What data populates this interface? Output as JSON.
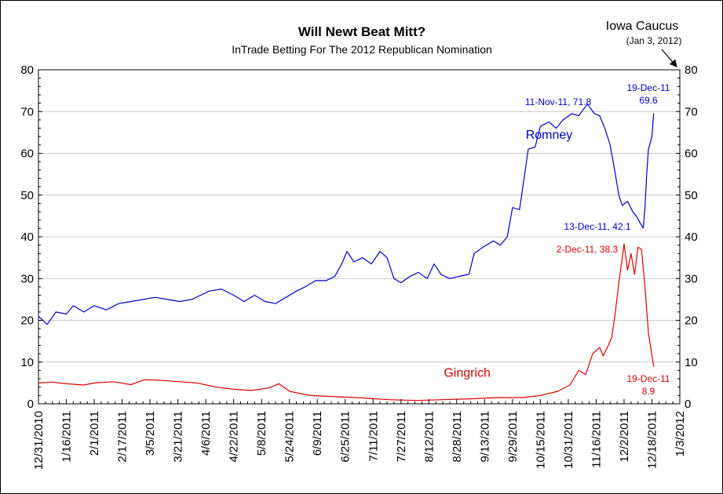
{
  "colors": {
    "romney": "#0000cc",
    "gingrich": "#dd0000",
    "grid": "#c8c8c8"
  },
  "chart_data": {
    "type": "line",
    "title": "Will Newt  Beat Mitt?",
    "subtitle": "InTrade Betting For The 2012 Republican Nomination",
    "ylim": [
      0,
      80
    ],
    "y_ticks": [
      0,
      10,
      20,
      30,
      40,
      50,
      60,
      70,
      80
    ],
    "x_range": [
      "2010-12-31",
      "2012-01-03"
    ],
    "x_tick_labels": [
      "12/31/2010",
      "1/16/2011",
      "2/1/2011",
      "2/17/2011",
      "3/5/2011",
      "3/21/2011",
      "4/6/2011",
      "4/22/2011",
      "5/8/2011",
      "5/24/2011",
      "6/9/2011",
      "6/25/2011",
      "7/11/2011",
      "7/27/2011",
      "8/12/2011",
      "8/28/2011",
      "9/13/2011",
      "9/29/2011",
      "10/15/2011",
      "10/31/2011",
      "11/16/2011",
      "12/2/2011",
      "12/18/2011",
      "1/3/2012"
    ],
    "grid": "horizontal",
    "series": [
      {
        "name": "Romney",
        "label_date": "2011-10-20",
        "label_value": 63.5,
        "points": [
          [
            "2010-12-31",
            21.0
          ],
          [
            "2011-01-05",
            19.0
          ],
          [
            "2011-01-10",
            22.0
          ],
          [
            "2011-01-16",
            21.5
          ],
          [
            "2011-01-20",
            23.5
          ],
          [
            "2011-01-26",
            22.0
          ],
          [
            "2011-02-01",
            23.5
          ],
          [
            "2011-02-08",
            22.5
          ],
          [
            "2011-02-15",
            24.0
          ],
          [
            "2011-02-22",
            24.5
          ],
          [
            "2011-03-01",
            25.0
          ],
          [
            "2011-03-08",
            25.5
          ],
          [
            "2011-03-15",
            25.0
          ],
          [
            "2011-03-22",
            24.5
          ],
          [
            "2011-03-29",
            25.0
          ],
          [
            "2011-04-03",
            26.0
          ],
          [
            "2011-04-08",
            27.0
          ],
          [
            "2011-04-15",
            27.5
          ],
          [
            "2011-04-22",
            26.0
          ],
          [
            "2011-04-28",
            24.5
          ],
          [
            "2011-05-04",
            26.0
          ],
          [
            "2011-05-10",
            24.5
          ],
          [
            "2011-05-16",
            24.0
          ],
          [
            "2011-05-22",
            25.5
          ],
          [
            "2011-05-28",
            27.0
          ],
          [
            "2011-06-02",
            28.0
          ],
          [
            "2011-06-08",
            29.5
          ],
          [
            "2011-06-14",
            29.5
          ],
          [
            "2011-06-19",
            30.5
          ],
          [
            "2011-06-23",
            33.5
          ],
          [
            "2011-06-26",
            36.5
          ],
          [
            "2011-06-30",
            34.0
          ],
          [
            "2011-07-05",
            35.0
          ],
          [
            "2011-07-10",
            33.5
          ],
          [
            "2011-07-15",
            36.5
          ],
          [
            "2011-07-19",
            35.0
          ],
          [
            "2011-07-23",
            30.0
          ],
          [
            "2011-07-27",
            29.0
          ],
          [
            "2011-08-01",
            30.5
          ],
          [
            "2011-08-06",
            31.5
          ],
          [
            "2011-08-11",
            30.0
          ],
          [
            "2011-08-15",
            33.5
          ],
          [
            "2011-08-19",
            31.0
          ],
          [
            "2011-08-24",
            30.0
          ],
          [
            "2011-08-29",
            30.5
          ],
          [
            "2011-09-04",
            31.0
          ],
          [
            "2011-09-07",
            36.0
          ],
          [
            "2011-09-12",
            37.5
          ],
          [
            "2011-09-18",
            39.0
          ],
          [
            "2011-09-22",
            38.0
          ],
          [
            "2011-09-26",
            40.0
          ],
          [
            "2011-09-29",
            47.0
          ],
          [
            "2011-10-03",
            46.5
          ],
          [
            "2011-10-06",
            55.0
          ],
          [
            "2011-10-08",
            61.0
          ],
          [
            "2011-10-12",
            61.5
          ],
          [
            "2011-10-15",
            66.5
          ],
          [
            "2011-10-20",
            67.5
          ],
          [
            "2011-10-24",
            66.0
          ],
          [
            "2011-10-28",
            68.0
          ],
          [
            "2011-11-02",
            69.5
          ],
          [
            "2011-11-06",
            69.0
          ],
          [
            "2011-11-11",
            71.8
          ],
          [
            "2011-11-15",
            69.5
          ],
          [
            "2011-11-18",
            69.0
          ],
          [
            "2011-11-21",
            66.0
          ],
          [
            "2011-11-24",
            62.0
          ],
          [
            "2011-11-27",
            55.0
          ],
          [
            "2011-11-29",
            50.0
          ],
          [
            "2011-12-01",
            47.5
          ],
          [
            "2011-12-04",
            48.5
          ],
          [
            "2011-12-07",
            46.0
          ],
          [
            "2011-12-09",
            45.0
          ],
          [
            "2011-12-11",
            43.5
          ],
          [
            "2011-12-13",
            42.1
          ],
          [
            "2011-12-14",
            47.0
          ],
          [
            "2011-12-15",
            55.0
          ],
          [
            "2011-12-16",
            61.0
          ],
          [
            "2011-12-18",
            64.0
          ],
          [
            "2011-12-19",
            69.6
          ]
        ]
      },
      {
        "name": "Gingrich",
        "label_date": "2011-09-03",
        "label_value": 6.5,
        "points": [
          [
            "2010-12-31",
            5.0
          ],
          [
            "2011-01-08",
            5.2
          ],
          [
            "2011-01-16",
            4.8
          ],
          [
            "2011-01-26",
            4.5
          ],
          [
            "2011-02-01",
            5.0
          ],
          [
            "2011-02-12",
            5.3
          ],
          [
            "2011-02-22",
            4.6
          ],
          [
            "2011-03-02",
            5.8
          ],
          [
            "2011-03-12",
            5.6
          ],
          [
            "2011-03-22",
            5.3
          ],
          [
            "2011-04-01",
            5.0
          ],
          [
            "2011-04-12",
            4.0
          ],
          [
            "2011-04-22",
            3.5
          ],
          [
            "2011-05-02",
            3.2
          ],
          [
            "2011-05-12",
            3.8
          ],
          [
            "2011-05-18",
            4.8
          ],
          [
            "2011-05-24",
            3.0
          ],
          [
            "2011-06-05",
            2.0
          ],
          [
            "2011-06-20",
            1.7
          ],
          [
            "2011-07-05",
            1.4
          ],
          [
            "2011-07-20",
            1.0
          ],
          [
            "2011-08-05",
            0.8
          ],
          [
            "2011-08-20",
            1.0
          ],
          [
            "2011-09-05",
            1.2
          ],
          [
            "2011-09-20",
            1.5
          ],
          [
            "2011-10-05",
            1.5
          ],
          [
            "2011-10-15",
            2.0
          ],
          [
            "2011-10-25",
            3.0
          ],
          [
            "2011-11-01",
            4.5
          ],
          [
            "2011-11-06",
            8.0
          ],
          [
            "2011-11-10",
            7.0
          ],
          [
            "2011-11-14",
            12.0
          ],
          [
            "2011-11-18",
            13.5
          ],
          [
            "2011-11-20",
            11.5
          ],
          [
            "2011-11-23",
            14.0
          ],
          [
            "2011-11-25",
            16.0
          ],
          [
            "2011-11-27",
            22.0
          ],
          [
            "2011-11-29",
            29.0
          ],
          [
            "2011-12-01",
            35.0
          ],
          [
            "2011-12-02",
            38.3
          ],
          [
            "2011-12-04",
            32.0
          ],
          [
            "2011-12-06",
            36.0
          ],
          [
            "2011-12-08",
            31.0
          ],
          [
            "2011-12-10",
            37.5
          ],
          [
            "2011-12-12",
            37.0
          ],
          [
            "2011-12-14",
            28.0
          ],
          [
            "2011-12-16",
            17.0
          ],
          [
            "2011-12-19",
            8.9
          ]
        ]
      }
    ],
    "annotations": [
      {
        "text": "11-Nov-11, 71.8",
        "series": "Romney"
      },
      {
        "text": "19-Dec-11",
        "series": "Romney"
      },
      {
        "text": "69.6",
        "series": "Romney"
      },
      {
        "text": "13-Dec-11, 42.1",
        "series": "Romney"
      },
      {
        "text": "2-Dec-11, 38.3",
        "series": "Gingrich"
      },
      {
        "text": "19-Dec-11",
        "series": "Gingrich"
      },
      {
        "text": "8.9",
        "series": "Gingrich"
      }
    ],
    "event": {
      "title": "Iowa Caucus",
      "subtitle": "(Jan 3, 2012)",
      "date": "2012-01-03"
    }
  }
}
